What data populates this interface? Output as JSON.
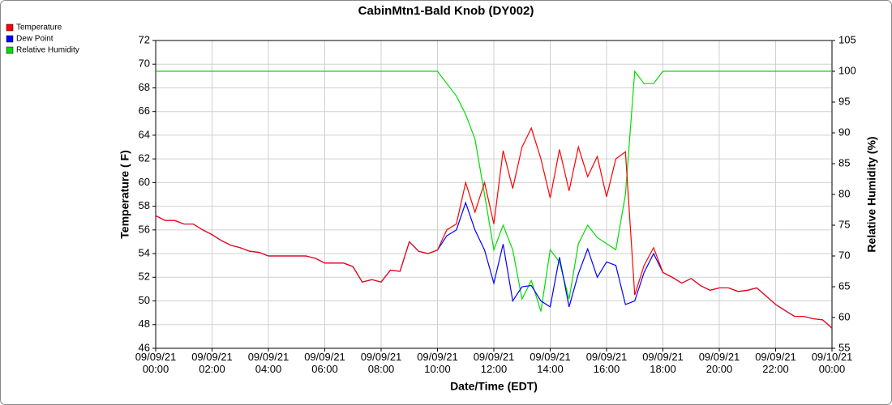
{
  "chart_data": {
    "type": "line",
    "title": "CabinMtn1-Bald Knob (DY002)",
    "xlabel": "Date/Time (EDT)",
    "ylabel": "Temperature ( F)",
    "y2label": "Relative Humidity (%)",
    "legend": "top-left",
    "grid": true,
    "x": [
      0,
      0.33,
      0.67,
      1,
      1.33,
      1.67,
      2,
      2.33,
      2.67,
      3,
      3.33,
      3.67,
      4,
      4.33,
      4.67,
      5,
      5.33,
      5.67,
      6,
      6.33,
      6.67,
      7,
      7.33,
      7.67,
      8,
      8.33,
      8.67,
      9,
      9.33,
      9.67,
      10,
      10.33,
      10.67,
      11,
      11.33,
      11.67,
      12,
      12.33,
      12.67,
      13,
      13.33,
      13.67,
      14,
      14.33,
      14.67,
      15,
      15.33,
      15.67,
      16,
      16.33,
      16.67,
      17,
      17.33,
      17.67,
      18,
      18.33,
      18.67,
      19,
      19.33,
      19.67,
      20,
      20.33,
      20.67,
      21,
      21.33,
      21.67,
      22,
      22.33,
      22.67,
      23,
      23.33,
      23.67,
      24
    ],
    "xlim": [
      0,
      24
    ],
    "xticks": [
      {
        "value": 0,
        "label": "09/09/21 00:00"
      },
      {
        "value": 2,
        "label": "09/09/21 02:00"
      },
      {
        "value": 4,
        "label": "09/09/21 04:00"
      },
      {
        "value": 6,
        "label": "09/09/21 06:00"
      },
      {
        "value": 8,
        "label": "09/09/21 08:00"
      },
      {
        "value": 10,
        "label": "09/09/21 10:00"
      },
      {
        "value": 12,
        "label": "09/09/21 12:00"
      },
      {
        "value": 14,
        "label": "09/09/21 14:00"
      },
      {
        "value": 16,
        "label": "09/09/21 16:00"
      },
      {
        "value": 18,
        "label": "09/09/21 18:00"
      },
      {
        "value": 20,
        "label": "09/09/21 20:00"
      },
      {
        "value": 22,
        "label": "09/09/21 22:00"
      },
      {
        "value": 24,
        "label": "09/10/21 00:00"
      }
    ],
    "ylim": [
      46,
      72
    ],
    "yticks": [
      46,
      48,
      50,
      52,
      54,
      56,
      58,
      60,
      62,
      64,
      66,
      68,
      70,
      72
    ],
    "y2lim": [
      55,
      105
    ],
    "y2ticks": [
      55,
      60,
      65,
      70,
      75,
      80,
      85,
      90,
      95,
      100,
      105
    ],
    "series": [
      {
        "name": "Temperature",
        "color": "#ff0000",
        "values": [
          57.2,
          56.8,
          56.8,
          56.5,
          56.5,
          56.0,
          55.6,
          55.1,
          54.7,
          54.5,
          54.2,
          54.1,
          53.8,
          53.8,
          53.8,
          53.8,
          53.8,
          53.6,
          53.2,
          53.2,
          53.2,
          52.9,
          51.6,
          51.8,
          51.6,
          52.6,
          52.5,
          55.0,
          54.2,
          54.0,
          54.3,
          56.0,
          56.5,
          60.0,
          57.5,
          60.0,
          56.5,
          62.7,
          59.5,
          63.0,
          64.6,
          62.0,
          58.7,
          62.8,
          59.3,
          63.0,
          60.5,
          62.2,
          58.8,
          62.0,
          62.6,
          50.5,
          53.0,
          54.5,
          52.4,
          52.0,
          51.5,
          51.9,
          51.3,
          50.9,
          51.1,
          51.1,
          50.8,
          50.9,
          51.1,
          50.4,
          49.7,
          49.2,
          48.7,
          48.7,
          48.5,
          48.4,
          47.7
        ]
      },
      {
        "name": "Dew Point",
        "color": "#0000ff",
        "values": [
          57.2,
          56.8,
          56.8,
          56.5,
          56.5,
          56.0,
          55.6,
          55.1,
          54.7,
          54.5,
          54.2,
          54.1,
          53.8,
          53.8,
          53.8,
          53.8,
          53.8,
          53.6,
          53.2,
          53.2,
          53.2,
          52.9,
          51.6,
          51.8,
          51.6,
          52.6,
          52.5,
          55.0,
          54.2,
          54.0,
          54.3,
          55.5,
          56.0,
          58.3,
          56.0,
          54.3,
          51.5,
          54.8,
          50.0,
          51.2,
          51.3,
          50.0,
          49.5,
          53.7,
          49.5,
          52.3,
          54.4,
          52.0,
          53.3,
          53.0,
          49.7,
          50.0,
          52.4,
          54.0,
          52.4,
          52.0,
          51.5,
          51.9,
          51.3,
          50.9,
          51.1,
          51.1,
          50.8,
          50.9,
          51.1,
          50.4,
          49.7,
          49.2,
          48.7,
          48.7,
          48.5,
          48.4,
          47.7
        ]
      },
      {
        "name": "Relative Humidity",
        "color": "#00dd00",
        "axis": "y2",
        "values": [
          100,
          100,
          100,
          100,
          100,
          100,
          100,
          100,
          100,
          100,
          100,
          100,
          100,
          100,
          100,
          100,
          100,
          100,
          100,
          100,
          100,
          100,
          100,
          100,
          100,
          100,
          100,
          100,
          100,
          100,
          100,
          98,
          96,
          93,
          89,
          80,
          71,
          75,
          71,
          63,
          66,
          61,
          71,
          69,
          63,
          72,
          75,
          73,
          72,
          71,
          80,
          100,
          98,
          98,
          100,
          100,
          100,
          100,
          100,
          100,
          100,
          100,
          100,
          100,
          100,
          100,
          100,
          100,
          100,
          100,
          100,
          100,
          100
        ]
      }
    ]
  }
}
